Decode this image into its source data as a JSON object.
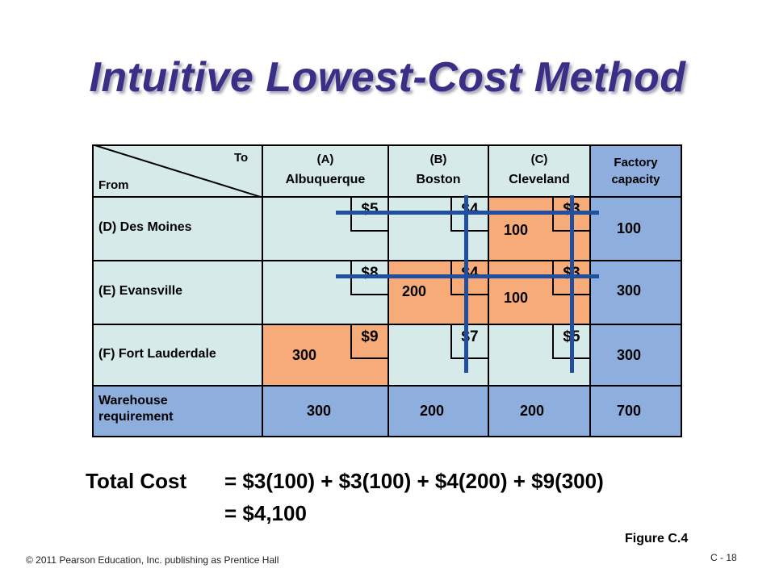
{
  "slide": {
    "title": "Intuitive Lowest-Cost Method",
    "figure_label": "Figure C.4",
    "copyright": "© 2011 Pearson Education, Inc. publishing as Prentice Hall",
    "page_number": "C - 18"
  },
  "table": {
    "corner_to": "To",
    "corner_from": "From",
    "columns": [
      {
        "code": "(A)",
        "name": "Albuquerque"
      },
      {
        "code": "(B)",
        "name": "Boston"
      },
      {
        "code": "(C)",
        "name": "Cleveland"
      }
    ],
    "capacity_header_line1": "Factory",
    "capacity_header_line2": "capacity",
    "rows": [
      {
        "label": "(D) Des Moines",
        "costs": [
          "$5",
          "$4",
          "$3"
        ],
        "shipments": [
          "",
          "",
          "100"
        ],
        "capacity": "100"
      },
      {
        "label": "(E) Evansville",
        "costs": [
          "$8",
          "$4",
          "$3"
        ],
        "shipments": [
          "",
          "200",
          "100"
        ],
        "capacity": "300"
      },
      {
        "label": "(F) Fort Lauderdale",
        "costs": [
          "$9",
          "$7",
          "$5"
        ],
        "shipments": [
          "300",
          "",
          ""
        ],
        "capacity": "300"
      }
    ],
    "requirement_label_line1": "Warehouse",
    "requirement_label_line2": "requirement",
    "requirements": [
      "300",
      "200",
      "200"
    ],
    "total_requirement": "700"
  },
  "total_cost": {
    "label": "Total Cost",
    "line1": "= $3(100) + $3(100) + $4(200) + $9(300)",
    "line2": "= $4,100"
  },
  "colors": {
    "title": "#3a2f86",
    "header_fill": "#d6eaea",
    "capacity_fill": "#8eaede",
    "shipment_fill": "#f6ab79",
    "cross_out_line": "#1f4f9e"
  }
}
